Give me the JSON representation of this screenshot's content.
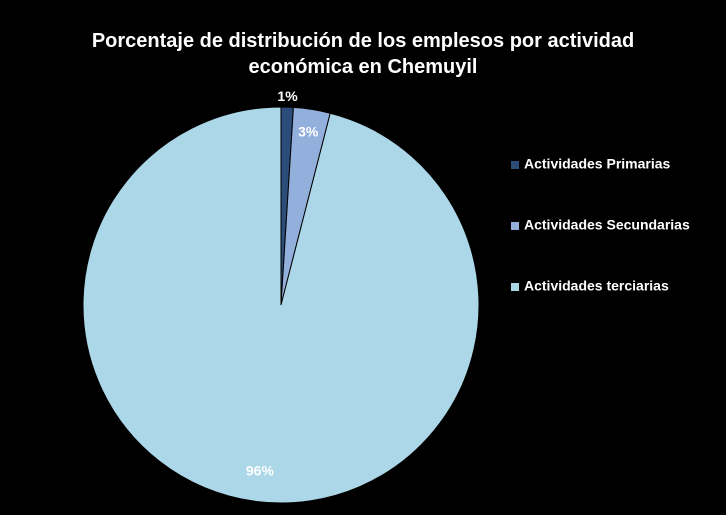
{
  "chart_data": {
    "type": "pie",
    "title": "Porcentaje de distribución de los emplesos por actividad económica en Chemuyil",
    "categories": [
      "Actividades Primarias",
      "Actividades Secundarias",
      "Actividades terciarias"
    ],
    "values": [
      1,
      3,
      96
    ],
    "value_labels": [
      "1%",
      "3%",
      "96%"
    ],
    "colors": [
      "#2c4d7a",
      "#93afdc",
      "#acd7e8"
    ],
    "legend": "right"
  }
}
